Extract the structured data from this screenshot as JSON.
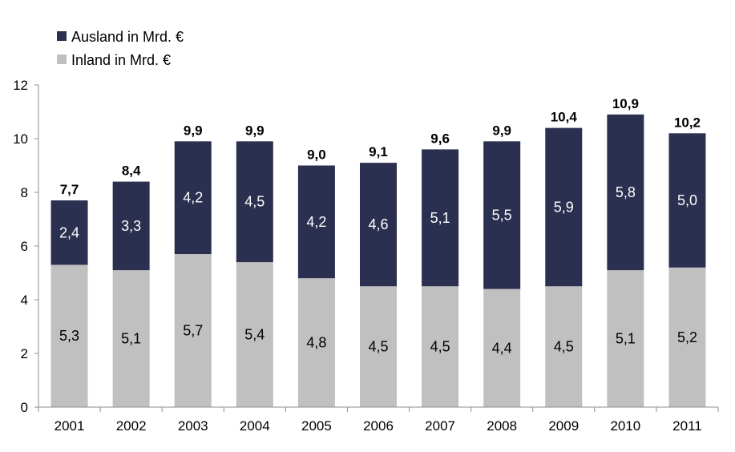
{
  "chart_data": {
    "type": "bar",
    "stacked": true,
    "categories": [
      "2001",
      "2002",
      "2003",
      "2004",
      "2005",
      "2006",
      "2007",
      "2008",
      "2009",
      "2010",
      "2011"
    ],
    "ylim": [
      0,
      12
    ],
    "yticks": [
      0,
      2,
      4,
      6,
      8,
      10,
      12
    ],
    "ytick_labels": [
      "0",
      "2",
      "4",
      "6",
      "8",
      "10",
      "12"
    ],
    "grid": false,
    "legend_position": "top-left",
    "series": [
      {
        "name": "Inland in Mrd. €",
        "color": "#c0c0c0",
        "label_color": "#000000",
        "values": [
          5.3,
          5.1,
          5.7,
          5.4,
          4.8,
          4.5,
          4.5,
          4.4,
          4.5,
          5.1,
          5.2
        ],
        "labels": [
          "5,3",
          "5,1",
          "5,7",
          "5,4",
          "4,8",
          "4,5",
          "4,5",
          "4,4",
          "4,5",
          "5,1",
          "5,2"
        ]
      },
      {
        "name": "Ausland in Mrd. €",
        "color": "#2b3050",
        "label_color": "#ffffff",
        "values": [
          2.4,
          3.3,
          4.2,
          4.5,
          4.2,
          4.6,
          5.1,
          5.5,
          5.9,
          5.8,
          5.0
        ],
        "labels": [
          "2,4",
          "3,3",
          "4,2",
          "4,5",
          "4,2",
          "4,6",
          "5,1",
          "5,5",
          "5,9",
          "5,8",
          "5,0"
        ]
      }
    ],
    "totals": [
      7.7,
      8.4,
      9.9,
      9.9,
      9.0,
      9.1,
      9.6,
      9.9,
      10.4,
      10.9,
      10.2
    ],
    "total_labels": [
      "7,7",
      "8,4",
      "9,9",
      "9,9",
      "9,0",
      "9,1",
      "9,6",
      "9,9",
      "10,4",
      "10,9",
      "10,2"
    ]
  },
  "legend": [
    {
      "label": "Ausland in Mrd. €",
      "color": "#2b3050"
    },
    {
      "label": "Inland in Mrd. €",
      "color": "#c0c0c0"
    }
  ]
}
